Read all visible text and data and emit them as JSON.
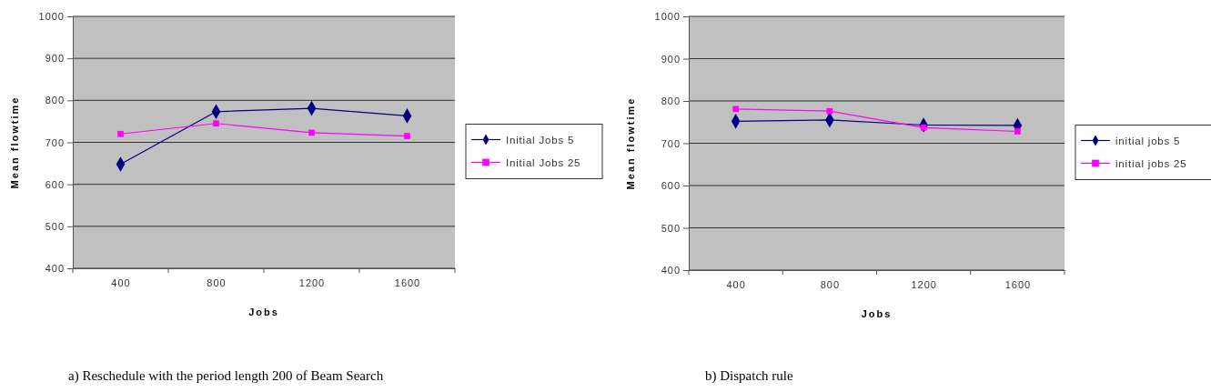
{
  "chart_data": [
    {
      "type": "line",
      "xlabel": "Jobs",
      "ylabel": "Mean flowtime",
      "categories": [
        "400",
        "800",
        "1200",
        "1600"
      ],
      "ylim": [
        400,
        1000
      ],
      "yticks": [
        400,
        500,
        600,
        700,
        800,
        900,
        1000
      ],
      "grid": "y",
      "legend": "right",
      "annotations": [
        "a) Reschedule with the period length 200 of Beam Search"
      ],
      "series": [
        {
          "name": "Initial Jobs 5",
          "color": "#000080",
          "marker": "diamond",
          "values": [
            648,
            773,
            781,
            763
          ]
        },
        {
          "name": "Initial Jobs 25",
          "color": "#ff00ff",
          "marker": "square",
          "values": [
            720,
            745,
            723,
            715
          ]
        }
      ]
    },
    {
      "type": "line",
      "xlabel": "Jobs",
      "ylabel": "Mean flowtime",
      "categories": [
        "400",
        "800",
        "1200",
        "1600"
      ],
      "ylim": [
        400,
        1000
      ],
      "yticks": [
        400,
        500,
        600,
        700,
        800,
        900,
        1000
      ],
      "grid": "y",
      "legend": "right",
      "annotations": [
        "b) Dispatch rule"
      ],
      "series": [
        {
          "name": "initial jobs 5",
          "color": "#000080",
          "marker": "diamond",
          "values": [
            752,
            755,
            743,
            742
          ]
        },
        {
          "name": "initial jobs 25",
          "color": "#ff00ff",
          "marker": "square",
          "values": [
            781,
            776,
            737,
            728
          ]
        }
      ]
    }
  ]
}
